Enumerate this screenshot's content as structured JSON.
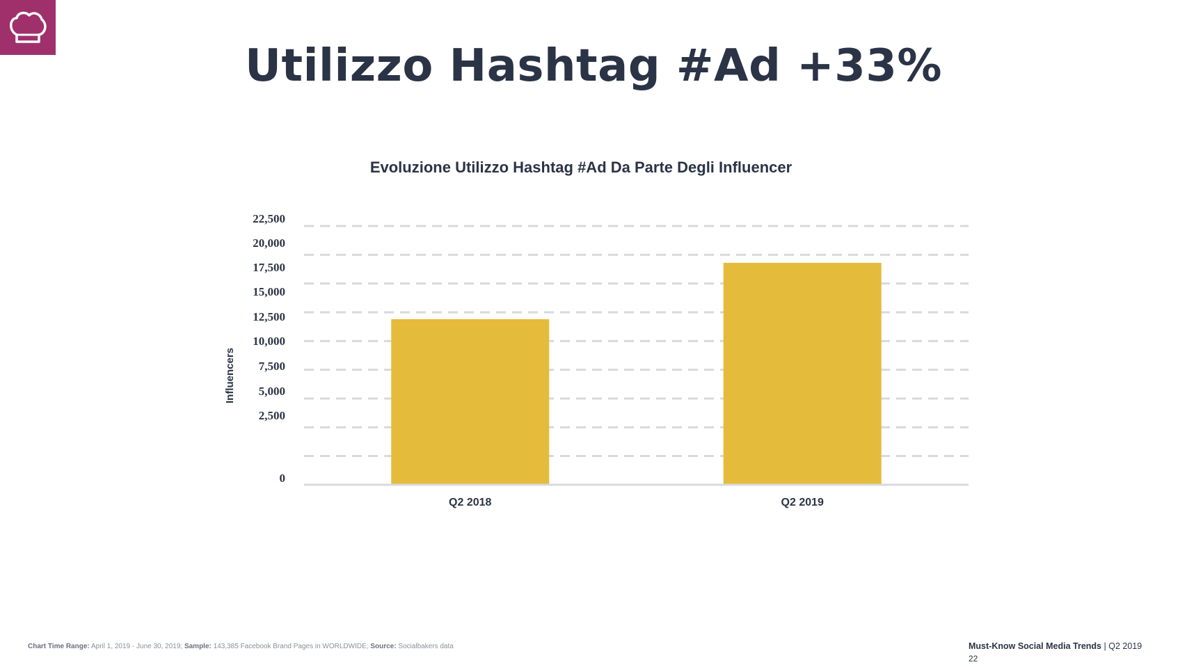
{
  "header": {
    "logo_icon": "chef-hat-icon",
    "title": "Utilizzo Hashtag #Ad +33%"
  },
  "chart_data": {
    "type": "bar",
    "title": "Evoluzione Utilizzo Hashtag #Ad Da Parte Degli Influencer",
    "xlabel": "",
    "ylabel": "Influencers",
    "categories": [
      "Q2 2018",
      "Q2 2019"
    ],
    "values": [
      14400,
      19300
    ],
    "ylim": [
      0,
      22500
    ],
    "yticks": [
      "22,500",
      "20,000",
      "17,500",
      "15,000",
      "12,500",
      "10,000",
      "7,500",
      "5,000",
      "2,500",
      "0"
    ],
    "grid": true,
    "bar_color": "#e5bb3b"
  },
  "footer": {
    "range_label": "Chart Time Range:",
    "range_value": "April 1, 2019 - June 30, 2019;",
    "sample_label": "Sample:",
    "sample_value": "143,385 Facebook Brand Pages in WORLDWIDE;",
    "source_label": "Source:",
    "source_value": "Socialbakers data",
    "brand": "Must-Know Social Media Trends",
    "separator": "|",
    "period": "Q2 2019",
    "page_number": "22"
  },
  "colors": {
    "accent": "#a0306b",
    "title": "#2b3346",
    "bar": "#e5bb3b",
    "grid": "#d7d9de"
  }
}
